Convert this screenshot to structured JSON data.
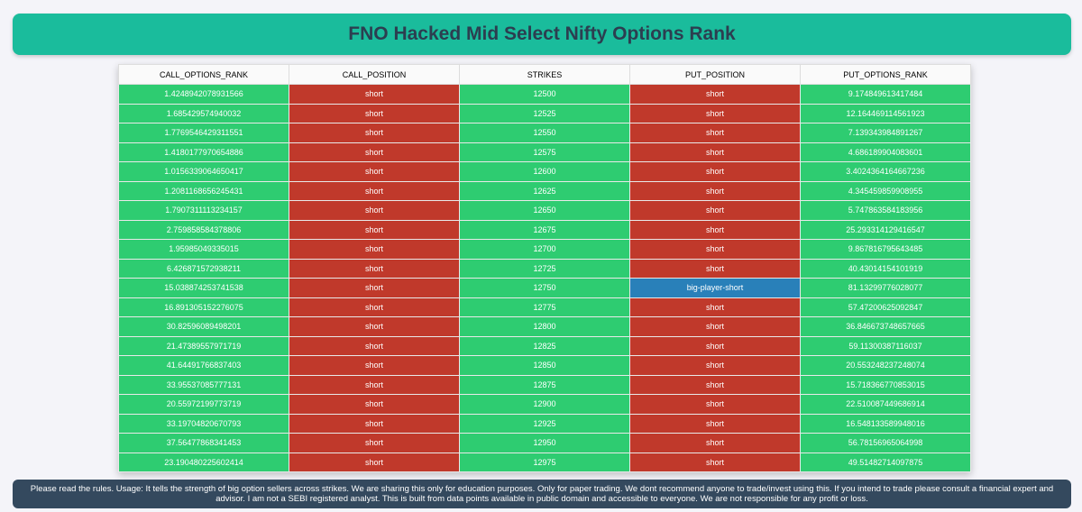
{
  "header": {
    "title": "FNO Hacked Mid Select Nifty Options Rank"
  },
  "colors": {
    "header_bg": "#1abc9c",
    "title_text": "#2c3e50",
    "rank_cell": "#2ecc71",
    "position_short": "#c0392b",
    "position_big_player_short": "#2980b9",
    "footer_bg": "#34495e"
  },
  "table": {
    "columns": [
      "CALL_OPTIONS_RANK",
      "CALL_POSITION",
      "STRIKES",
      "PUT_POSITION",
      "PUT_OPTIONS_RANK"
    ],
    "rows": [
      [
        "1.4248942078931566",
        "short",
        "12500",
        "short",
        "9.174849613417484"
      ],
      [
        "1.685429574940032",
        "short",
        "12525",
        "short",
        "12.164469114561923"
      ],
      [
        "1.7769546429311551",
        "short",
        "12550",
        "short",
        "7.139343984891267"
      ],
      [
        "1.4180177970654886",
        "short",
        "12575",
        "short",
        "4.686189904083601"
      ],
      [
        "1.0156339064650417",
        "short",
        "12600",
        "short",
        "3.4024364164667236"
      ],
      [
        "1.2081168656245431",
        "short",
        "12625",
        "short",
        "4.345459859908955"
      ],
      [
        "1.7907311113234157",
        "short",
        "12650",
        "short",
        "5.747863584183956"
      ],
      [
        "2.759858584378806",
        "short",
        "12675",
        "short",
        "25.293314129416547"
      ],
      [
        "1.95985049335015",
        "short",
        "12700",
        "short",
        "9.867816795643485"
      ],
      [
        "6.426871572938211",
        "short",
        "12725",
        "short",
        "40.43014154101919"
      ],
      [
        "15.038874253741538",
        "short",
        "12750",
        "big-player-short",
        "81.13299776028077"
      ],
      [
        "16.891305152276075",
        "short",
        "12775",
        "short",
        "57.47200625092847"
      ],
      [
        "30.82596089498201",
        "short",
        "12800",
        "short",
        "36.846673748657665"
      ],
      [
        "21.47389557971719",
        "short",
        "12825",
        "short",
        "59.11300387116037"
      ],
      [
        "41.64491766837403",
        "short",
        "12850",
        "short",
        "20.553248237248074"
      ],
      [
        "33.95537085777131",
        "short",
        "12875",
        "short",
        "15.718366770853015"
      ],
      [
        "20.55972199773719",
        "short",
        "12900",
        "short",
        "22.510087449686914"
      ],
      [
        "33.19704820670793",
        "short",
        "12925",
        "short",
        "16.548133589948016"
      ],
      [
        "37.56477868341453",
        "short",
        "12950",
        "short",
        "56.78156965064998"
      ],
      [
        "23.190480225602414",
        "short",
        "12975",
        "short",
        "49.51482714097875"
      ]
    ]
  },
  "footer": {
    "text": "Please read the rules. Usage: It tells the strength of big option sellers across strikes. We are sharing this only for education purposes. Only for paper trading. We dont recommend anyone to trade/invest using this. If you intend to trade please consult a financial expert and advisor. I am not a SEBI registered analyst. This is built from data points available in public domain and accessible to everyone. We are not responsible for any profit or loss."
  }
}
